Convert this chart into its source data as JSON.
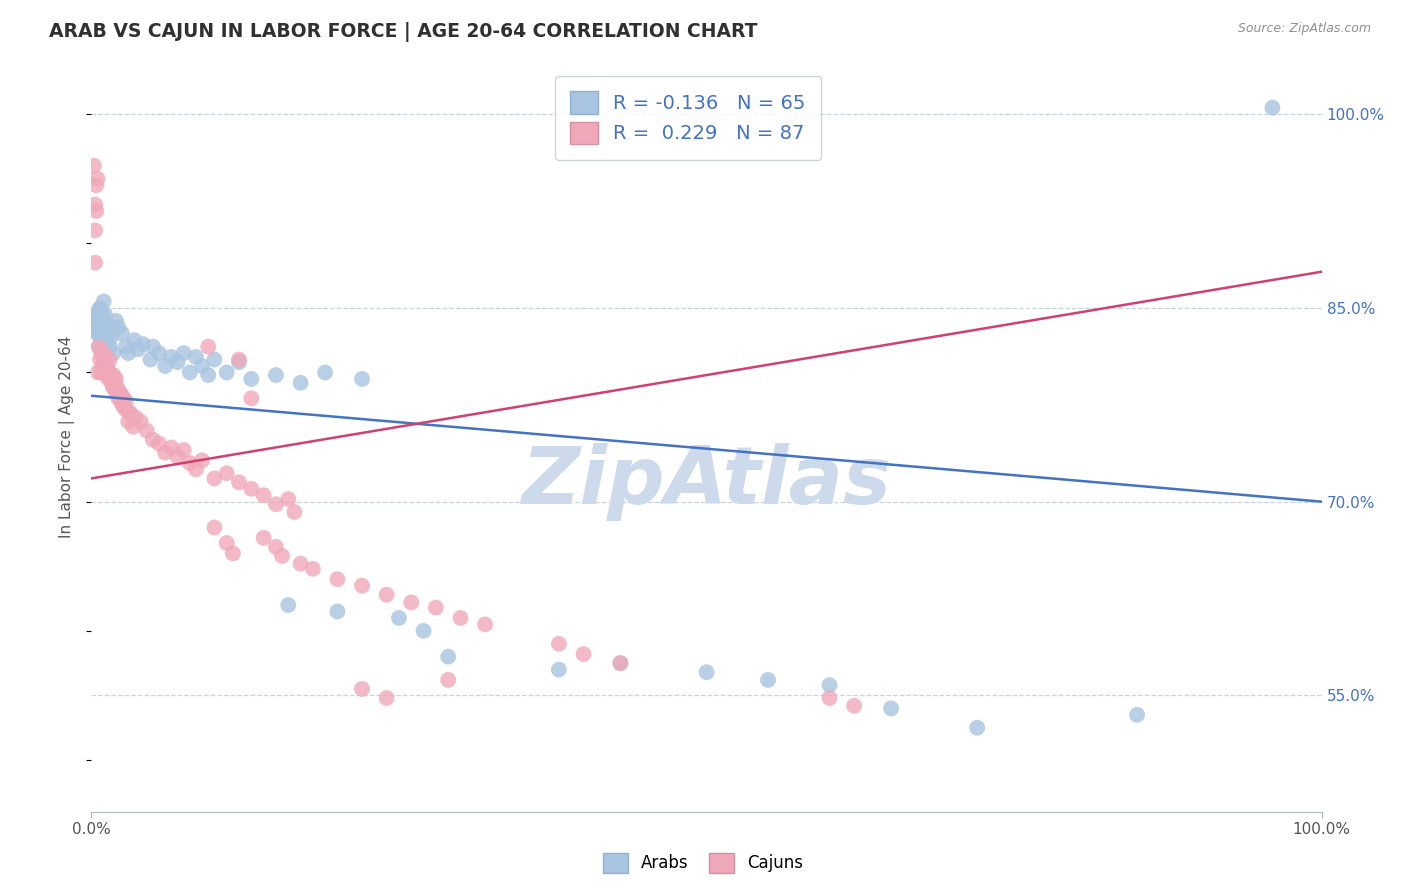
{
  "title": "ARAB VS CAJUN IN LABOR FORCE | AGE 20-64 CORRELATION CHART",
  "source": "Source: ZipAtlas.com",
  "ylabel": "In Labor Force | Age 20-64",
  "right_yticks": [
    55.0,
    70.0,
    85.0,
    100.0
  ],
  "arab_R": -0.136,
  "arab_N": 65,
  "cajun_R": 0.229,
  "cajun_N": 87,
  "arab_color": "#a8c4e0",
  "cajun_color": "#f0a8b8",
  "arab_line_color": "#4472c4",
  "cajun_line_color": "#d04070",
  "watermark_color": "#ccdaeb",
  "background_color": "#ffffff",
  "grid_color": "#c8d4dc",
  "title_color": "#303030",
  "source_color": "#909090",
  "right_label_color": "#4472c4",
  "xlim": [
    0.0,
    1.0
  ],
  "ylim": [
    0.46,
    1.04
  ],
  "arab_line_y0": 0.782,
  "arab_line_y1": 0.7,
  "cajun_line_y0": 0.718,
  "cajun_line_y1": 0.878,
  "arab_dots": [
    [
      0.002,
      0.835
    ],
    [
      0.003,
      0.84
    ],
    [
      0.003,
      0.845
    ],
    [
      0.004,
      0.838
    ],
    [
      0.004,
      0.832
    ],
    [
      0.005,
      0.842
    ],
    [
      0.005,
      0.83
    ],
    [
      0.006,
      0.848
    ],
    [
      0.006,
      0.82
    ],
    [
      0.007,
      0.85
    ],
    [
      0.007,
      0.835
    ],
    [
      0.008,
      0.845
    ],
    [
      0.008,
      0.825
    ],
    [
      0.009,
      0.815
    ],
    [
      0.009,
      0.84
    ],
    [
      0.01,
      0.855
    ],
    [
      0.01,
      0.83
    ],
    [
      0.011,
      0.845
    ],
    [
      0.012,
      0.838
    ],
    [
      0.013,
      0.825
    ],
    [
      0.014,
      0.832
    ],
    [
      0.015,
      0.82
    ],
    [
      0.016,
      0.828
    ],
    [
      0.018,
      0.815
    ],
    [
      0.02,
      0.84
    ],
    [
      0.022,
      0.835
    ],
    [
      0.025,
      0.83
    ],
    [
      0.028,
      0.82
    ],
    [
      0.03,
      0.815
    ],
    [
      0.035,
      0.825
    ],
    [
      0.038,
      0.818
    ],
    [
      0.042,
      0.822
    ],
    [
      0.048,
      0.81
    ],
    [
      0.05,
      0.82
    ],
    [
      0.055,
      0.815
    ],
    [
      0.06,
      0.805
    ],
    [
      0.065,
      0.812
    ],
    [
      0.07,
      0.808
    ],
    [
      0.075,
      0.815
    ],
    [
      0.08,
      0.8
    ],
    [
      0.085,
      0.812
    ],
    [
      0.09,
      0.805
    ],
    [
      0.095,
      0.798
    ],
    [
      0.1,
      0.81
    ],
    [
      0.11,
      0.8
    ],
    [
      0.12,
      0.808
    ],
    [
      0.13,
      0.795
    ],
    [
      0.15,
      0.798
    ],
    [
      0.17,
      0.792
    ],
    [
      0.19,
      0.8
    ],
    [
      0.22,
      0.795
    ],
    [
      0.16,
      0.62
    ],
    [
      0.2,
      0.615
    ],
    [
      0.25,
      0.61
    ],
    [
      0.27,
      0.6
    ],
    [
      0.29,
      0.58
    ],
    [
      0.38,
      0.57
    ],
    [
      0.43,
      0.575
    ],
    [
      0.5,
      0.568
    ],
    [
      0.55,
      0.562
    ],
    [
      0.6,
      0.558
    ],
    [
      0.65,
      0.54
    ],
    [
      0.72,
      0.525
    ],
    [
      0.85,
      0.535
    ],
    [
      0.96,
      1.005
    ]
  ],
  "cajun_dots": [
    [
      0.002,
      0.96
    ],
    [
      0.003,
      0.93
    ],
    [
      0.003,
      0.91
    ],
    [
      0.003,
      0.885
    ],
    [
      0.004,
      0.945
    ],
    [
      0.004,
      0.925
    ],
    [
      0.005,
      0.95
    ],
    [
      0.005,
      0.8
    ],
    [
      0.006,
      0.82
    ],
    [
      0.007,
      0.81
    ],
    [
      0.008,
      0.815
    ],
    [
      0.008,
      0.8
    ],
    [
      0.009,
      0.805
    ],
    [
      0.01,
      0.8
    ],
    [
      0.01,
      0.815
    ],
    [
      0.011,
      0.808
    ],
    [
      0.012,
      0.798
    ],
    [
      0.013,
      0.805
    ],
    [
      0.014,
      0.795
    ],
    [
      0.015,
      0.8
    ],
    [
      0.015,
      0.81
    ],
    [
      0.016,
      0.795
    ],
    [
      0.017,
      0.79
    ],
    [
      0.018,
      0.798
    ],
    [
      0.018,
      0.788
    ],
    [
      0.019,
      0.792
    ],
    [
      0.02,
      0.785
    ],
    [
      0.02,
      0.795
    ],
    [
      0.021,
      0.788
    ],
    [
      0.022,
      0.78
    ],
    [
      0.023,
      0.785
    ],
    [
      0.024,
      0.778
    ],
    [
      0.025,
      0.782
    ],
    [
      0.025,
      0.775
    ],
    [
      0.026,
      0.78
    ],
    [
      0.027,
      0.772
    ],
    [
      0.028,
      0.778
    ],
    [
      0.03,
      0.77
    ],
    [
      0.03,
      0.762
    ],
    [
      0.032,
      0.768
    ],
    [
      0.034,
      0.758
    ],
    [
      0.036,
      0.765
    ],
    [
      0.04,
      0.762
    ],
    [
      0.045,
      0.755
    ],
    [
      0.05,
      0.748
    ],
    [
      0.055,
      0.745
    ],
    [
      0.06,
      0.738
    ],
    [
      0.065,
      0.742
    ],
    [
      0.07,
      0.735
    ],
    [
      0.075,
      0.74
    ],
    [
      0.08,
      0.73
    ],
    [
      0.085,
      0.725
    ],
    [
      0.09,
      0.732
    ],
    [
      0.1,
      0.718
    ],
    [
      0.11,
      0.722
    ],
    [
      0.12,
      0.715
    ],
    [
      0.13,
      0.71
    ],
    [
      0.14,
      0.705
    ],
    [
      0.15,
      0.698
    ],
    [
      0.16,
      0.702
    ],
    [
      0.165,
      0.692
    ],
    [
      0.12,
      0.81
    ],
    [
      0.13,
      0.78
    ],
    [
      0.095,
      0.82
    ],
    [
      0.1,
      0.68
    ],
    [
      0.11,
      0.668
    ],
    [
      0.115,
      0.66
    ],
    [
      0.14,
      0.672
    ],
    [
      0.15,
      0.665
    ],
    [
      0.155,
      0.658
    ],
    [
      0.17,
      0.652
    ],
    [
      0.18,
      0.648
    ],
    [
      0.2,
      0.64
    ],
    [
      0.22,
      0.635
    ],
    [
      0.24,
      0.628
    ],
    [
      0.26,
      0.622
    ],
    [
      0.28,
      0.618
    ],
    [
      0.3,
      0.61
    ],
    [
      0.32,
      0.605
    ],
    [
      0.38,
      0.59
    ],
    [
      0.4,
      0.582
    ],
    [
      0.43,
      0.575
    ],
    [
      0.22,
      0.555
    ],
    [
      0.24,
      0.548
    ],
    [
      0.29,
      0.562
    ],
    [
      0.6,
      0.548
    ],
    [
      0.62,
      0.542
    ]
  ]
}
